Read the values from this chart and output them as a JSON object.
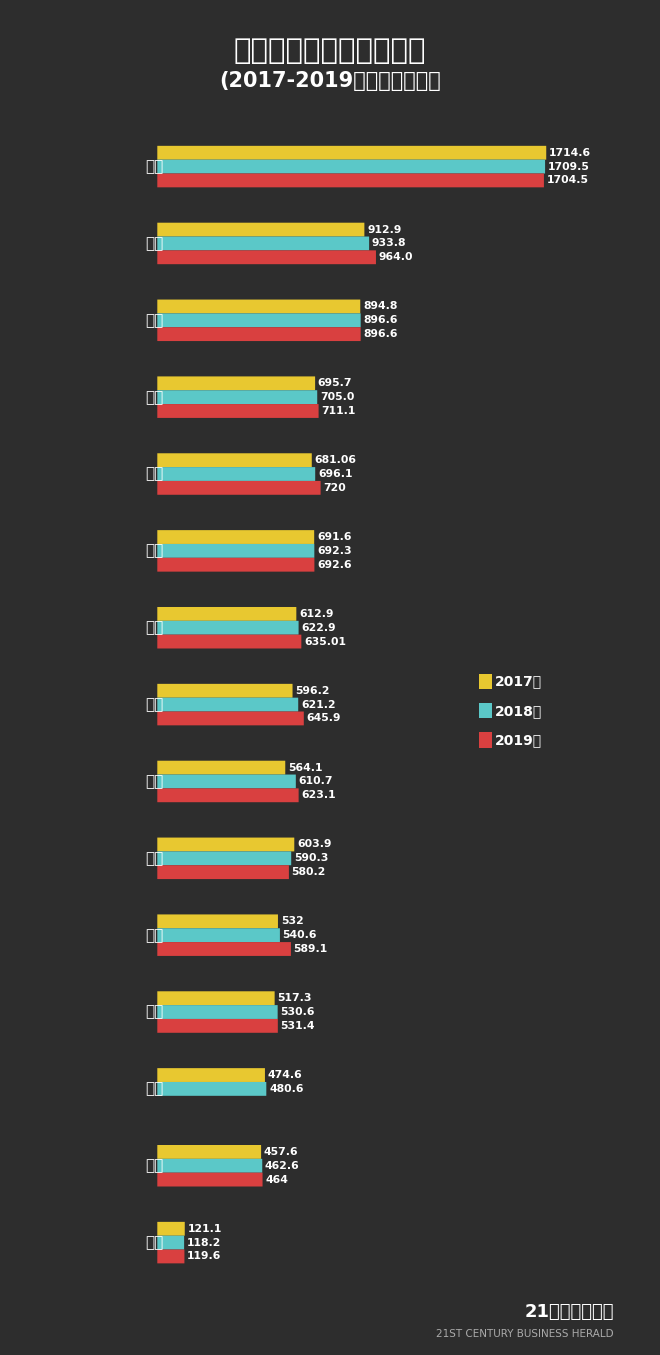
{
  "title1": "新一线城市就业人口一览",
  "title2": "(2017-2019年）单位：万人",
  "bg_color": "#2d2d2d",
  "text_color": "#ffffff",
  "bar_color_2017": "#e8c830",
  "bar_color_2018": "#5bc8c8",
  "bar_color_2019": "#d94040",
  "cities": [
    "重庆",
    "成都",
    "天津",
    "东莞",
    "杭州",
    "苏州",
    "郑州",
    "西安",
    "武汉",
    "青岛",
    "宁波",
    "佛山",
    "长沙",
    "南京",
    "沈阳"
  ],
  "data_2017": [
    1714.6,
    912.9,
    894.8,
    695.7,
    681.06,
    691.6,
    612.9,
    596.2,
    564.1,
    603.9,
    532.0,
    517.3,
    474.6,
    457.6,
    121.1
  ],
  "data_2018": [
    1709.5,
    933.8,
    896.6,
    705.0,
    696.1,
    692.3,
    622.9,
    621.2,
    610.7,
    590.3,
    540.6,
    530.6,
    480.6,
    462.6,
    118.2
  ],
  "data_2019": [
    1704.5,
    964.0,
    896.6,
    711.1,
    720.0,
    692.6,
    635.01,
    645.9,
    623.1,
    580.2,
    589.1,
    531.4,
    null,
    464.0,
    119.6
  ],
  "labels_2017": [
    "1714.6",
    "912.9",
    "894.8",
    "695.7",
    "681.06",
    "691.6",
    "612.9",
    "596.2",
    "564.1",
    "603.9",
    "532",
    "517.3",
    "474.6",
    "457.6",
    "121.1"
  ],
  "labels_2018": [
    "1709.5",
    "933.8",
    "896.6",
    "705.0",
    "696.1",
    "692.3",
    "622.9",
    "621.2",
    "610.7",
    "590.3",
    "540.6",
    "530.6",
    "480.6",
    "462.6",
    "118.2"
  ],
  "labels_2019": [
    "1704.5",
    "964.0",
    "896.6",
    "711.1",
    "720",
    "692.6",
    "635.01",
    "645.9",
    "623.1",
    "580.2",
    "589.1",
    "531.4",
    null,
    "464",
    "119.6"
  ],
  "footer": "21世纪经济报道",
  "footer_sub": "21ST CENTURY BUSINESS HERALD",
  "legend_labels": [
    "2017年",
    "2018年",
    "2019年"
  ]
}
